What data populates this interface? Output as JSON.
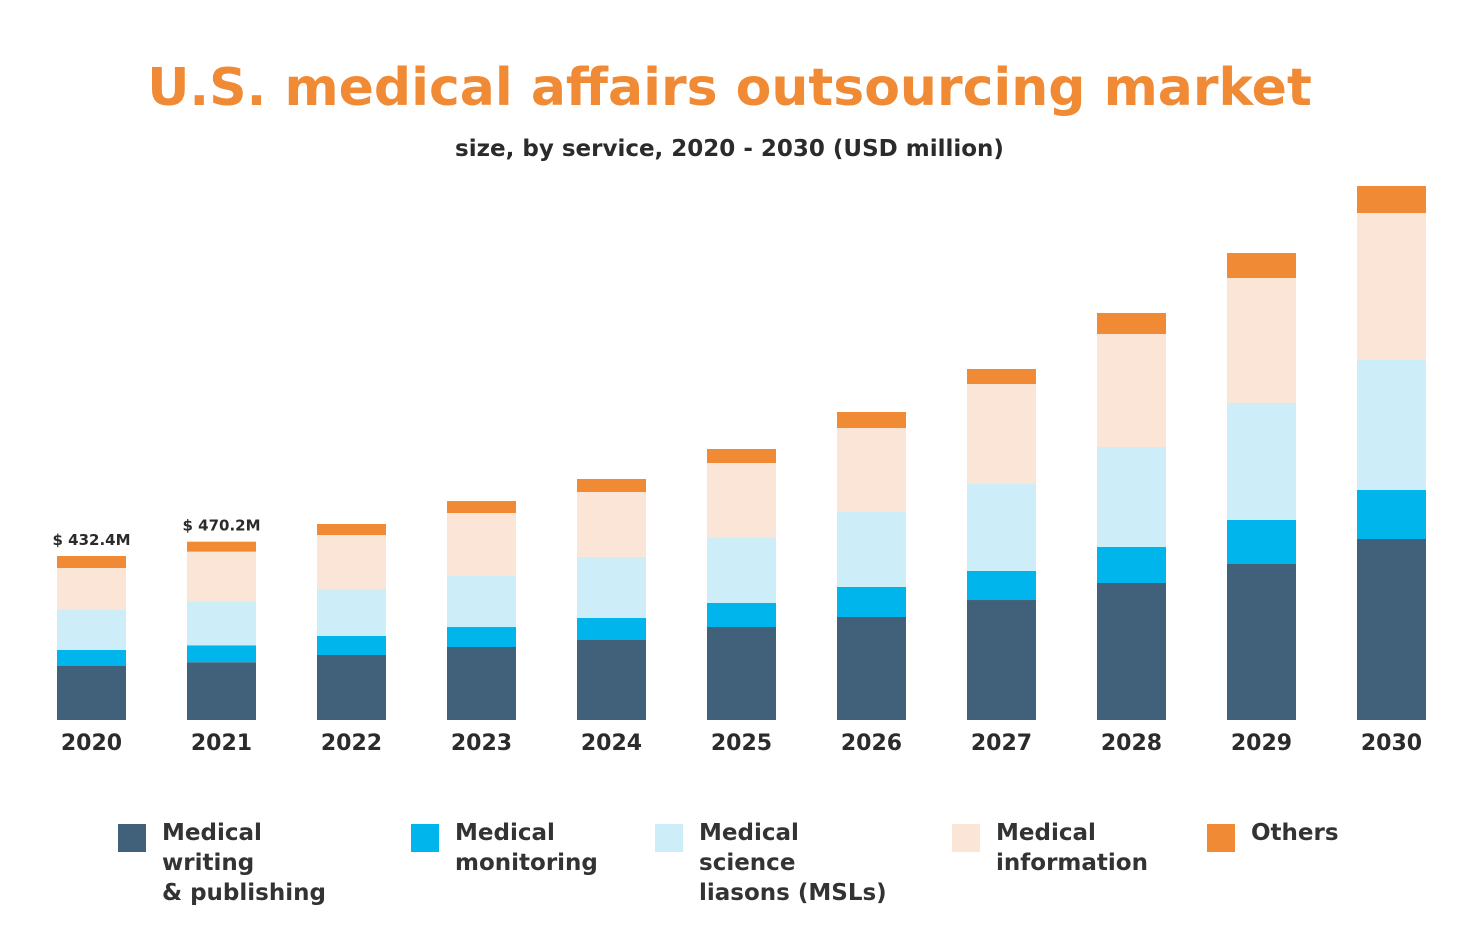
{
  "chart_data": {
    "type": "bar",
    "stacked": true,
    "title": "U.S. medical affairs outsourcing market",
    "subtitle": "size, by service, 2020 - 2030 (USD million)",
    "xlabel": "",
    "ylabel": "",
    "ylim": [
      0,
      1420
    ],
    "grid": false,
    "legend_position": "bottom",
    "categories": [
      "2020",
      "2021",
      "2022",
      "2023",
      "2024",
      "2025",
      "2026",
      "2027",
      "2028",
      "2029",
      "2030"
    ],
    "series": [
      {
        "name": "Medical writing\n& publishing",
        "color": "#41617a",
        "values": [
          142.4,
          152.3,
          171.4,
          192.5,
          211.0,
          245.2,
          271.6,
          316.4,
          361.3,
          411.4,
          477.3
        ]
      },
      {
        "name": "Medical\nmonitoring",
        "color": "#00b5ec",
        "values": [
          42.2,
          44.6,
          50.1,
          52.7,
          58.0,
          63.3,
          79.1,
          76.5,
          94.9,
          116.0,
          129.2
        ]
      },
      {
        "name": "Medical science\nliasons (MSLs)",
        "color": "#cdeef9",
        "values": [
          105.5,
          115.6,
          123.9,
          134.5,
          160.9,
          171.4,
          197.8,
          229.4,
          263.7,
          308.5,
          342.8
        ]
      },
      {
        "name": "Medical\ninformation",
        "color": "#fbe5d6",
        "values": [
          110.8,
          131.4,
          142.4,
          166.1,
          171.4,
          197.8,
          221.5,
          263.7,
          298.0,
          329.6,
          387.6
        ]
      },
      {
        "name": "Others",
        "color": "#f08a34",
        "values": [
          31.5,
          26.3,
          29.0,
          31.6,
          34.3,
          36.9,
          42.2,
          39.6,
          55.4,
          65.9,
          71.2
        ]
      }
    ],
    "annotations": [
      {
        "category": "2020",
        "text": "$ 432.4M"
      },
      {
        "category": "2021",
        "text": "$ 470.2M"
      }
    ]
  }
}
